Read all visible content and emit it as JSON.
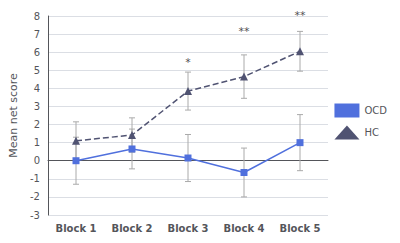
{
  "chart_data": {
    "type": "line",
    "categories": [
      "Block 1",
      "Block 2",
      "Block 3",
      "Block 4",
      "Block 5"
    ],
    "ylabel": "Mean net score",
    "ylim": [
      -3,
      8
    ],
    "yticks": [
      -3,
      -2,
      -1,
      0,
      1,
      2,
      3,
      4,
      5,
      6,
      7,
      8
    ],
    "grid": true,
    "legend": "right",
    "series": [
      {
        "name": "OCD",
        "values": [
          0.0,
          0.65,
          0.15,
          -0.65,
          1.0
        ],
        "errors": [
          1.3,
          1.1,
          1.3,
          1.35,
          1.55
        ],
        "marker": "square",
        "line_style": "solid"
      },
      {
        "name": "HC",
        "values": [
          1.1,
          1.42,
          3.85,
          4.65,
          6.05
        ],
        "errors": [
          1.05,
          0.95,
          1.05,
          1.2,
          1.1
        ],
        "marker": "triangle",
        "line_style": "dashed"
      }
    ],
    "annotations": [
      {
        "x": "Block 3",
        "y": 5.15,
        "text": "*"
      },
      {
        "x": "Block 4",
        "y": 6.85,
        "text": "**"
      },
      {
        "x": "Block 5",
        "y": 7.7,
        "text": "**"
      }
    ]
  }
}
